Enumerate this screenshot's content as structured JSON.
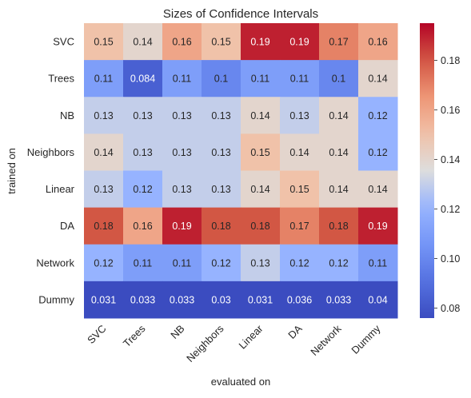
{
  "chart_data": {
    "type": "heatmap",
    "title": "Sizes of Confidence Intervals",
    "xlabel": "evaluated on",
    "ylabel": "trained on",
    "x_categories": [
      "SVC",
      "Trees",
      "NB",
      "Neighbors",
      "Linear",
      "DA",
      "Network",
      "Dummy"
    ],
    "y_categories": [
      "SVC",
      "Trees",
      "NB",
      "Neighbors",
      "Linear",
      "DA",
      "Network",
      "Dummy"
    ],
    "values": [
      [
        0.15,
        0.14,
        0.16,
        0.15,
        0.19,
        0.19,
        0.17,
        0.16
      ],
      [
        0.11,
        0.084,
        0.11,
        0.1,
        0.11,
        0.11,
        0.1,
        0.14
      ],
      [
        0.13,
        0.13,
        0.13,
        0.13,
        0.14,
        0.13,
        0.14,
        0.12
      ],
      [
        0.14,
        0.13,
        0.13,
        0.13,
        0.15,
        0.14,
        0.14,
        0.12
      ],
      [
        0.13,
        0.12,
        0.13,
        0.13,
        0.14,
        0.15,
        0.14,
        0.14
      ],
      [
        0.18,
        0.16,
        0.19,
        0.18,
        0.18,
        0.17,
        0.18,
        0.19
      ],
      [
        0.12,
        0.11,
        0.11,
        0.12,
        0.13,
        0.12,
        0.12,
        0.11
      ],
      [
        0.031,
        0.033,
        0.033,
        0.03,
        0.031,
        0.036,
        0.033,
        0.04
      ]
    ],
    "value_labels": [
      [
        "0.15",
        "0.14",
        "0.16",
        "0.15",
        "0.19",
        "0.19",
        "0.17",
        "0.16"
      ],
      [
        "0.11",
        "0.084",
        "0.11",
        "0.1",
        "0.11",
        "0.11",
        "0.1",
        "0.14"
      ],
      [
        "0.13",
        "0.13",
        "0.13",
        "0.13",
        "0.14",
        "0.13",
        "0.14",
        "0.12"
      ],
      [
        "0.14",
        "0.13",
        "0.13",
        "0.13",
        "0.15",
        "0.14",
        "0.14",
        "0.12"
      ],
      [
        "0.13",
        "0.12",
        "0.13",
        "0.13",
        "0.14",
        "0.15",
        "0.14",
        "0.14"
      ],
      [
        "0.18",
        "0.16",
        "0.19",
        "0.18",
        "0.18",
        "0.17",
        "0.18",
        "0.19"
      ],
      [
        "0.12",
        "0.11",
        "0.11",
        "0.12",
        "0.13",
        "0.12",
        "0.12",
        "0.11"
      ],
      [
        "0.031",
        "0.033",
        "0.033",
        "0.03",
        "0.031",
        "0.036",
        "0.033",
        "0.04"
      ]
    ],
    "colormap": "coolwarm",
    "color_range": [
      0.076,
      0.195
    ],
    "colorbar_ticks": [
      "0.08",
      "0.10",
      "0.12",
      "0.14",
      "0.16",
      "0.18"
    ],
    "colorbar_tick_values": [
      0.08,
      0.1,
      0.12,
      0.14,
      0.16,
      0.18
    ],
    "grid": false,
    "colorbar_placement": "right"
  }
}
